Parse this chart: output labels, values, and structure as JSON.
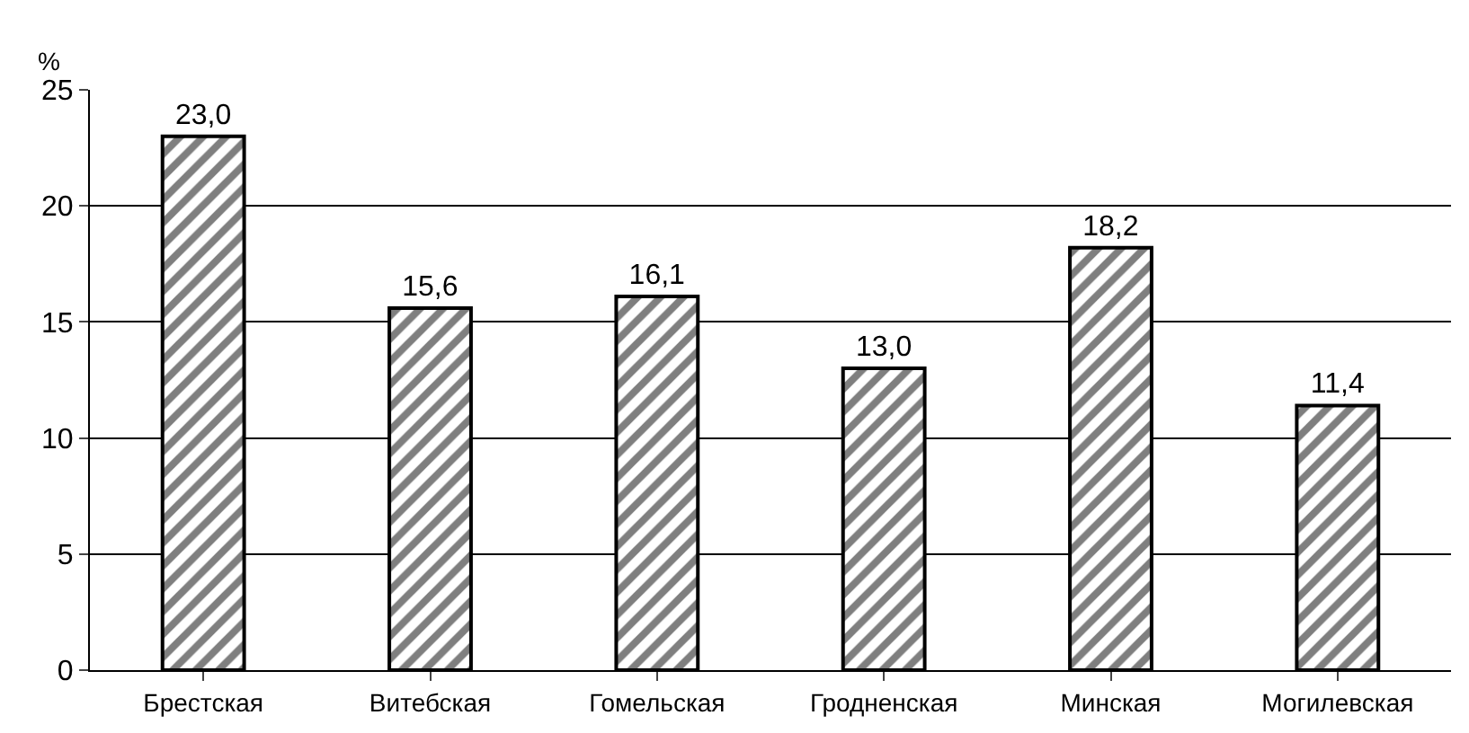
{
  "chart_data": {
    "type": "bar",
    "ylabel": "%",
    "categories": [
      "Брестская",
      "Витебская",
      "Гомельская",
      "Гродненская",
      "Минская",
      "Могилевская"
    ],
    "values": [
      23.0,
      15.6,
      16.1,
      13.0,
      18.2,
      11.4
    ],
    "value_labels": [
      "23,0",
      "15,6",
      "16,1",
      "13,0",
      "18,2",
      "11,4"
    ],
    "color": "#000000",
    "ylim": [
      0,
      25
    ],
    "yticks": [
      0,
      5,
      10,
      15,
      20,
      25
    ],
    "grid": "y",
    "legend": false
  }
}
